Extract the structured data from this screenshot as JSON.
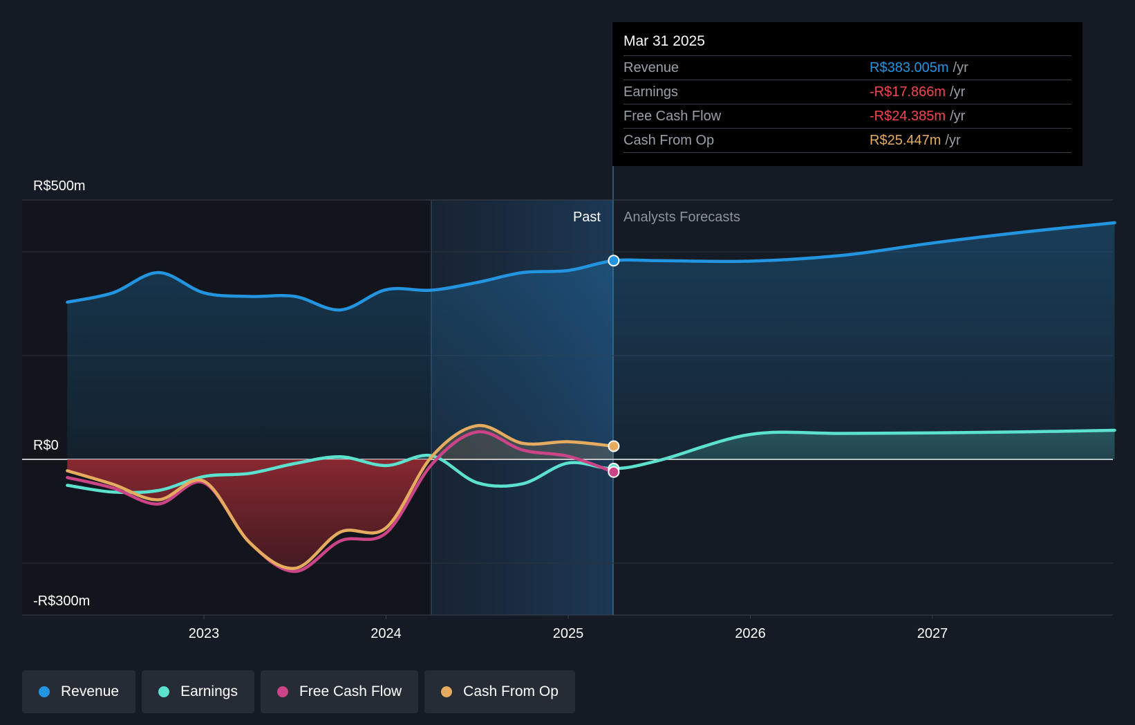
{
  "chart_data": {
    "type": "line",
    "y_unit": "R$m",
    "ylim": [
      -300,
      500
    ],
    "y_tick_labels": [
      "R$500m",
      "R$0",
      "-R$300m"
    ],
    "x_tick_labels": [
      "2023",
      "2024",
      "2025",
      "2026",
      "2027"
    ],
    "periods": {
      "past_label": "Past",
      "forecast_label": "Analysts Forecasts"
    },
    "series": [
      {
        "name": "Revenue",
        "color": "#2394df",
        "points": [
          [
            2022.25,
            303
          ],
          [
            2022.5,
            321
          ],
          [
            2022.75,
            360
          ],
          [
            2023.0,
            321
          ],
          [
            2023.25,
            314
          ],
          [
            2023.5,
            314
          ],
          [
            2023.75,
            288
          ],
          [
            2024.0,
            327
          ],
          [
            2024.25,
            326
          ],
          [
            2024.5,
            341
          ],
          [
            2024.75,
            360
          ],
          [
            2025.0,
            364
          ],
          [
            2025.25,
            383
          ],
          [
            2025.5,
            383
          ],
          [
            2026.0,
            382
          ],
          [
            2026.5,
            393
          ],
          [
            2027.0,
            417
          ],
          [
            2027.5,
            438
          ],
          [
            2028.0,
            456
          ]
        ]
      },
      {
        "name": "Earnings",
        "color": "#5ce1cf",
        "points": [
          [
            2022.25,
            -50
          ],
          [
            2022.5,
            -63
          ],
          [
            2022.75,
            -60
          ],
          [
            2023.0,
            -33
          ],
          [
            2023.25,
            -27
          ],
          [
            2023.5,
            -8
          ],
          [
            2023.75,
            5
          ],
          [
            2024.0,
            -12
          ],
          [
            2024.25,
            7
          ],
          [
            2024.5,
            -45
          ],
          [
            2024.75,
            -47
          ],
          [
            2025.0,
            -7
          ],
          [
            2025.25,
            -17.9
          ],
          [
            2025.5,
            -2
          ],
          [
            2026.0,
            48
          ],
          [
            2026.5,
            50
          ],
          [
            2027.0,
            51
          ],
          [
            2027.5,
            53
          ],
          [
            2028.0,
            56
          ]
        ]
      },
      {
        "name": "Free Cash Flow",
        "color": "#cc4488",
        "points": [
          [
            2022.25,
            -35
          ],
          [
            2022.5,
            -55
          ],
          [
            2022.75,
            -86
          ],
          [
            2023.0,
            -45
          ],
          [
            2023.25,
            -160
          ],
          [
            2023.5,
            -216
          ],
          [
            2023.75,
            -157
          ],
          [
            2024.0,
            -142
          ],
          [
            2024.25,
            -10
          ],
          [
            2024.5,
            53
          ],
          [
            2024.75,
            18
          ],
          [
            2025.0,
            6
          ],
          [
            2025.25,
            -24.4
          ]
        ]
      },
      {
        "name": "Cash From Op",
        "color": "#e5ac5f",
        "points": [
          [
            2022.25,
            -22
          ],
          [
            2022.5,
            -48
          ],
          [
            2022.75,
            -78
          ],
          [
            2023.0,
            -42
          ],
          [
            2023.25,
            -160
          ],
          [
            2023.5,
            -210
          ],
          [
            2023.75,
            -140
          ],
          [
            2024.0,
            -132
          ],
          [
            2024.25,
            5
          ],
          [
            2024.5,
            65
          ],
          [
            2024.75,
            31
          ],
          [
            2025.0,
            34
          ],
          [
            2025.25,
            25.4
          ]
        ]
      }
    ]
  },
  "tooltip": {
    "date": "Mar 31 2025",
    "rows": [
      {
        "name": "Revenue",
        "value": "R$383.005m",
        "unit": "/yr",
        "color": "#2394df"
      },
      {
        "name": "Earnings",
        "value": "-R$17.866m",
        "unit": "/yr",
        "color": "#f5454f"
      },
      {
        "name": "Free Cash Flow",
        "value": "-R$24.385m",
        "unit": "/yr",
        "color": "#f5454f"
      },
      {
        "name": "Cash From Op",
        "value": "R$25.447m",
        "unit": "/yr",
        "color": "#e5ac5f"
      }
    ]
  },
  "legend": [
    {
      "label": "Revenue",
      "color": "#2394df"
    },
    {
      "label": "Earnings",
      "color": "#5ce1cf"
    },
    {
      "label": "Free Cash Flow",
      "color": "#cc4488"
    },
    {
      "label": "Cash From Op",
      "color": "#e5ac5f"
    }
  ]
}
